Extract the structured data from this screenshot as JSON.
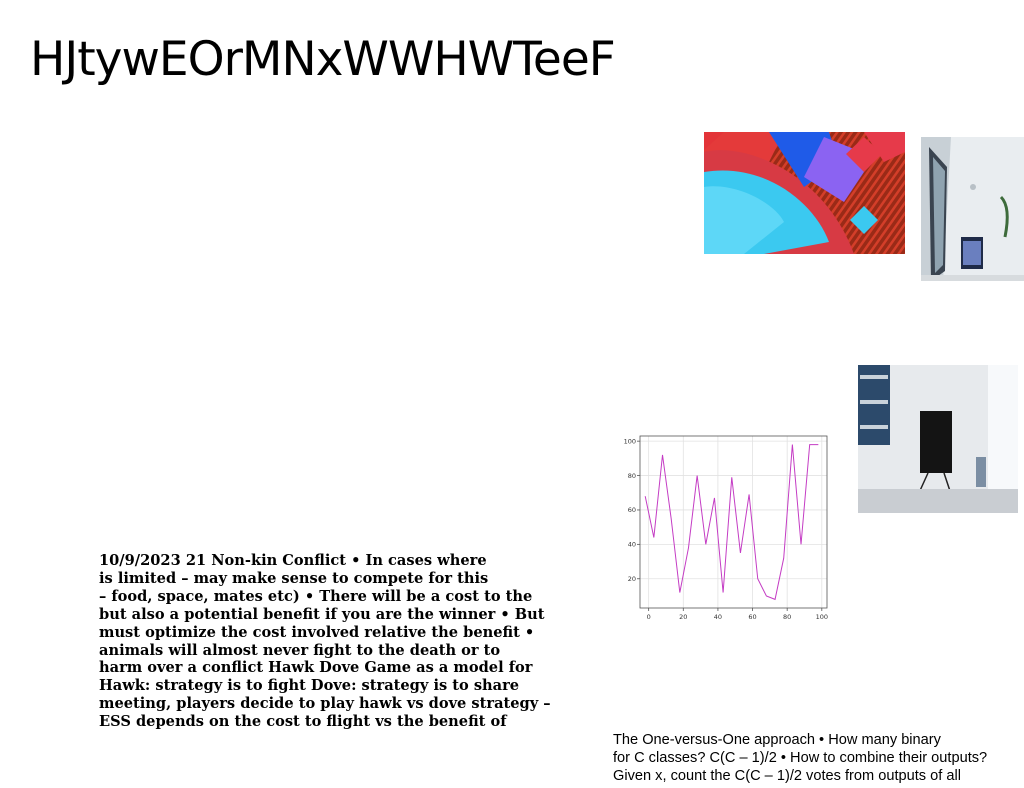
{
  "slide": {
    "title": "HJtywEOrMNxWWHWTeeF"
  },
  "images": {
    "abstract_art": {
      "icon": "abstract-geometric-art-image"
    },
    "interior_room": {
      "icon": "interior-room-photo-image"
    },
    "easel_tv": {
      "icon": "easel-tv-photo-image"
    }
  },
  "body_lines": [
    "10/9/2023 21 Non-kin Conflict • In cases where",
    "is limited – may make sense to compete for this",
    "– food, space, mates etc) • There will be a cost to the",
    "but also a potential benefit if you are the winner • But",
    "must optimize the cost involved relative the benefit •",
    "animals will almost never fight to the death or to",
    "harm over a conflict Hawk Dove Game as a model for",
    "Hawk: strategy is to fight Dove: strategy is to share",
    "meeting, players decide to play hawk vs dove strategy –",
    "ESS depends on the cost to flight vs the benefit of"
  ],
  "caption_lines": [
    "The One-versus-One approach • How many binary",
    "for C classes? C(C – 1)/2 • How to combine their outputs?",
    "Given x, count the C(C – 1)/2 votes from outputs of all"
  ],
  "chart_data": {
    "type": "line",
    "x": [
      -2,
      3,
      8,
      13,
      18,
      23,
      28,
      33,
      38,
      43,
      48,
      53,
      58,
      63,
      68,
      73,
      78,
      83,
      88,
      93,
      98
    ],
    "series": [
      {
        "values": [
          68,
          44,
          92,
          55,
          12,
          38,
          80,
          40,
          67,
          12,
          79,
          35,
          69,
          20,
          10,
          8,
          32,
          98,
          40,
          98,
          98
        ],
        "color": "#c43cc4"
      }
    ],
    "xticks": [
      0,
      20,
      40,
      60,
      80,
      100
    ],
    "yticks": [
      20,
      40,
      60,
      80,
      100
    ],
    "xlim": [
      -5,
      103
    ],
    "ylim": [
      3,
      103
    ],
    "grid": true
  }
}
